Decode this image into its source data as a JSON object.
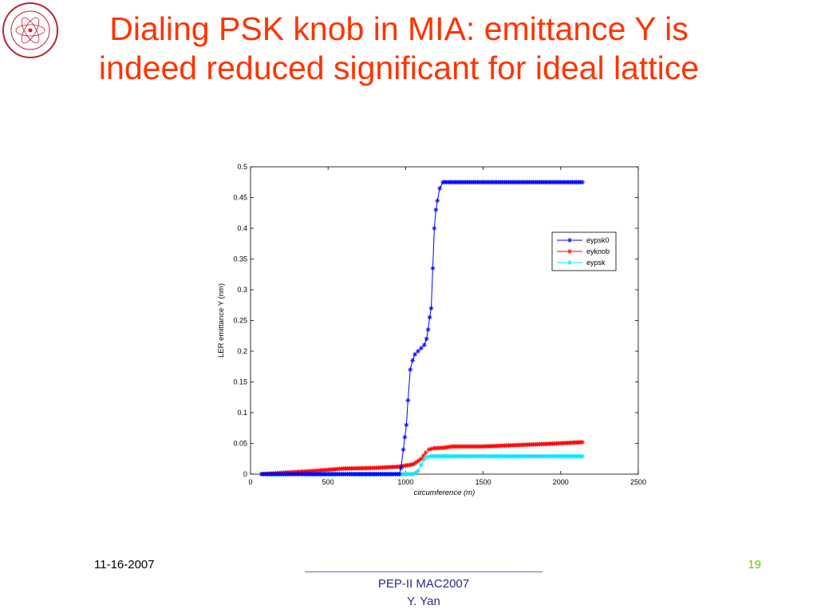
{
  "slide": {
    "title_line1": "Dialing PSK knob in MIA: emittance Y is",
    "title_line2": "indeed reduced significant for ideal lattice",
    "date": "11-16-2007",
    "page_number": "19",
    "conference": "PEP-II MAC2007",
    "author": "Y. Yan"
  },
  "colors": {
    "title": "#ff3300",
    "page_number": "#66cc00",
    "eypsk0": "#0000ff",
    "eyknob": "#ff0000",
    "eypsk": "#00e5ff"
  },
  "chart_data": {
    "type": "line",
    "xlabel": "circumference (m)",
    "ylabel": "LER emittance Y (nm)",
    "xlim": [
      0,
      2500
    ],
    "ylim": [
      0,
      0.5
    ],
    "xticks": [
      0,
      500,
      1000,
      1500,
      2000,
      2500
    ],
    "yticks": [
      0,
      0.05,
      0.1,
      0.15,
      0.2,
      0.25,
      0.3,
      0.35,
      0.4,
      0.45,
      0.5
    ],
    "grid": false,
    "legend_position": "upper-right",
    "series": [
      {
        "name": "eypsk0",
        "color": "#0000ff",
        "marker": "*",
        "x": [
          70,
          200,
          400,
          600,
          800,
          960,
          970,
          985,
          995,
          1005,
          1015,
          1030,
          1045,
          1060,
          1080,
          1100,
          1120,
          1135,
          1145,
          1155,
          1165,
          1175,
          1185,
          1195,
          1205,
          1220,
          1240,
          1300,
          1400,
          1500,
          1600,
          1700,
          1800,
          1900,
          2000,
          2140
        ],
        "y": [
          0,
          0,
          0,
          0,
          0,
          0,
          0.01,
          0.04,
          0.06,
          0.08,
          0.12,
          0.17,
          0.185,
          0.195,
          0.2,
          0.205,
          0.21,
          0.22,
          0.235,
          0.255,
          0.27,
          0.335,
          0.4,
          0.43,
          0.445,
          0.465,
          0.475,
          0.475,
          0.475,
          0.475,
          0.475,
          0.475,
          0.475,
          0.475,
          0.475,
          0.475
        ]
      },
      {
        "name": "eyknob",
        "color": "#ff0000",
        "marker": "*",
        "x": [
          70,
          200,
          400,
          600,
          800,
          950,
          1050,
          1100,
          1130,
          1150,
          1180,
          1250,
          1300,
          1500,
          1700,
          1900,
          2140
        ],
        "y": [
          0,
          0.002,
          0.005,
          0.009,
          0.01,
          0.012,
          0.016,
          0.025,
          0.035,
          0.04,
          0.042,
          0.043,
          0.045,
          0.045,
          0.047,
          0.049,
          0.052
        ]
      },
      {
        "name": "eypsk",
        "color": "#00e5ff",
        "marker": "*",
        "x": [
          70,
          300,
          600,
          900,
          1050,
          1080,
          1100,
          1120,
          1140,
          1160,
          1200,
          1400,
          1600,
          1800,
          2000,
          2140
        ],
        "y": [
          0,
          0,
          0,
          0,
          0,
          0.005,
          0.015,
          0.024,
          0.028,
          0.029,
          0.029,
          0.029,
          0.029,
          0.029,
          0.029,
          0.029
        ]
      }
    ]
  }
}
